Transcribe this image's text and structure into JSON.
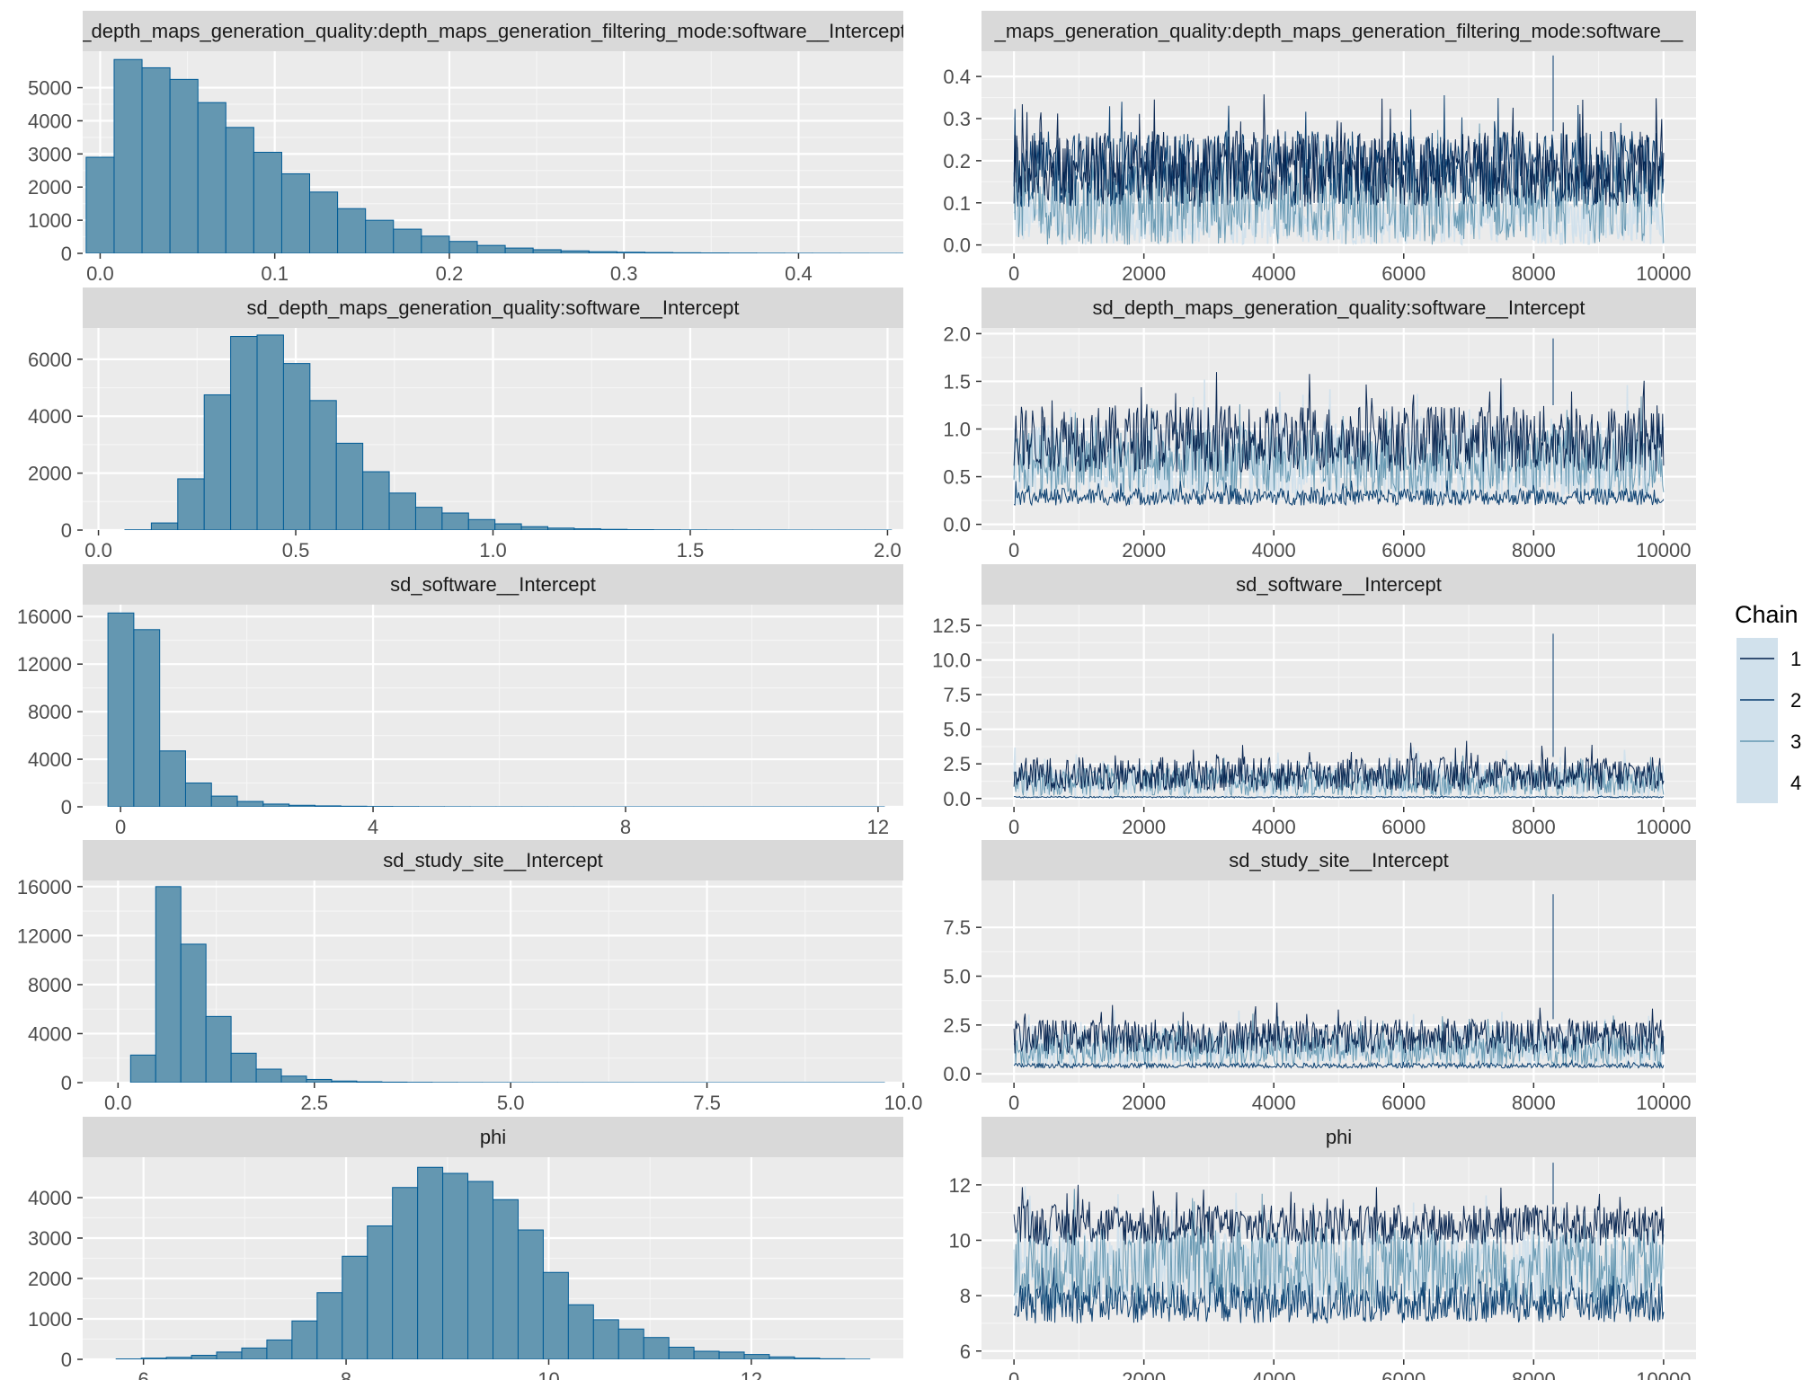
{
  "colors": {
    "panel_bg": "#ebebeb",
    "grid_major": "#ffffff",
    "strip_bg": "#d9d9d9",
    "bar_fill": "#6497b1",
    "bar_outline": "#005b96",
    "chain_1": "#011f4b",
    "chain_2": "#03396c",
    "chain_3": "#6497b1",
    "chain_4": "#d1e1ec"
  },
  "legend": {
    "title": "Chain",
    "items": [
      "1",
      "2",
      "3",
      "4"
    ]
  },
  "chart_data": [
    {
      "type": "bar",
      "kind": "histogram",
      "title": "_depth_maps_generation_quality:depth_maps_generation_filtering_mode:software__Intercept",
      "xlim": [
        -0.01,
        0.46
      ],
      "ylim": [
        0,
        6100
      ],
      "xticks": [
        0.0,
        0.1,
        0.2,
        0.3,
        0.4
      ],
      "xtick_labels": [
        "0.0",
        "0.1",
        "0.2",
        "0.3",
        "0.4"
      ],
      "yticks": [
        0,
        1000,
        2000,
        3000,
        4000,
        5000
      ],
      "ytick_labels": [
        "0",
        "1000",
        "2000",
        "3000",
        "4000",
        "5000"
      ],
      "bin_start": -0.008,
      "bin_width": 0.016,
      "counts": [
        2900,
        5850,
        5600,
        5250,
        4550,
        3800,
        3050,
        2400,
        1850,
        1350,
        1000,
        730,
        520,
        360,
        240,
        160,
        110,
        75,
        50,
        35,
        25,
        18,
        13,
        9,
        6,
        4,
        3,
        2,
        1,
        1
      ]
    },
    {
      "type": "line",
      "kind": "trace",
      "title": "_maps_generation_quality:depth_maps_generation_filtering_mode:software__",
      "xlim": [
        -500,
        10500
      ],
      "ylim": [
        -0.02,
        0.46
      ],
      "xticks": [
        0,
        2000,
        4000,
        6000,
        8000,
        10000
      ],
      "xtick_labels": [
        "0",
        "2000",
        "4000",
        "6000",
        "8000",
        "10000"
      ],
      "yticks": [
        0.0,
        0.1,
        0.2,
        0.3,
        0.4
      ],
      "ytick_labels": [
        "0.0",
        "0.1",
        "0.2",
        "0.3",
        "0.4"
      ],
      "iterations": [
        0,
        10000
      ],
      "series": [
        {
          "name": "1",
          "band": [
            0.09,
            0.27
          ]
        },
        {
          "name": "2",
          "band": [
            0.09,
            0.27
          ]
        },
        {
          "name": "3",
          "band": [
            0.0,
            0.2
          ]
        },
        {
          "name": "4",
          "band": [
            0.0,
            0.12
          ]
        }
      ],
      "max_value": 0.45
    },
    {
      "type": "bar",
      "kind": "histogram",
      "title": "sd_depth_maps_generation_quality:software__Intercept",
      "xlim": [
        -0.04,
        2.04
      ],
      "ylim": [
        0,
        7100
      ],
      "xticks": [
        0.0,
        0.5,
        1.0,
        1.5,
        2.0
      ],
      "xtick_labels": [
        "0.0",
        "0.5",
        "1.0",
        "1.5",
        "2.0"
      ],
      "yticks": [
        0,
        2000,
        4000,
        6000
      ],
      "ytick_labels": [
        "0",
        "2000",
        "4000",
        "6000"
      ],
      "bin_start": 0.0,
      "bin_width": 0.067,
      "counts": [
        0,
        10,
        250,
        1800,
        4750,
        6800,
        6850,
        5850,
        4550,
        3050,
        2050,
        1300,
        800,
        600,
        370,
        220,
        120,
        70,
        45,
        25,
        15,
        10,
        6,
        4,
        3,
        2,
        1,
        1,
        1,
        1
      ]
    },
    {
      "type": "line",
      "kind": "trace",
      "title": "sd_depth_maps_generation_quality:software__Intercept",
      "xlim": [
        -500,
        10500
      ],
      "ylim": [
        -0.06,
        2.06
      ],
      "xticks": [
        0,
        2000,
        4000,
        6000,
        8000,
        10000
      ],
      "xtick_labels": [
        "0",
        "2000",
        "4000",
        "6000",
        "8000",
        "10000"
      ],
      "yticks": [
        0.0,
        0.5,
        1.0,
        1.5,
        2.0
      ],
      "ytick_labels": [
        "0.0",
        "0.5",
        "1.0",
        "1.5",
        "2.0"
      ],
      "iterations": [
        0,
        10000
      ],
      "series": [
        {
          "name": "1",
          "band": [
            0.55,
            1.25
          ]
        },
        {
          "name": "2",
          "band": [
            0.2,
            0.38
          ]
        },
        {
          "name": "3",
          "band": [
            0.3,
            1.0
          ]
        },
        {
          "name": "4",
          "band": [
            0.2,
            1.1
          ]
        }
      ],
      "max_value": 1.95
    },
    {
      "type": "bar",
      "kind": "histogram",
      "title": "sd_software__Intercept",
      "xlim": [
        -0.6,
        12.4
      ],
      "ylim": [
        0,
        17000
      ],
      "xticks": [
        0,
        4,
        8,
        12
      ],
      "xtick_labels": [
        "0",
        "4",
        "8",
        "12"
      ],
      "yticks": [
        0,
        4000,
        8000,
        12000,
        16000
      ],
      "ytick_labels": [
        "0",
        "4000",
        "8000",
        "12000",
        "16000"
      ],
      "bin_start": -0.2,
      "bin_width": 0.41,
      "counts": [
        16300,
        14900,
        4700,
        2000,
        900,
        450,
        230,
        130,
        80,
        50,
        30,
        20,
        12,
        8,
        5,
        4,
        3,
        2,
        2,
        1,
        1,
        1,
        1,
        1,
        1,
        1,
        1,
        1,
        1,
        1
      ]
    },
    {
      "type": "line",
      "kind": "trace",
      "title": "sd_software__Intercept",
      "xlim": [
        -500,
        10500
      ],
      "ylim": [
        -0.6,
        14.0
      ],
      "xticks": [
        0,
        2000,
        4000,
        6000,
        8000,
        10000
      ],
      "xtick_labels": [
        "0",
        "2000",
        "4000",
        "6000",
        "8000",
        "10000"
      ],
      "yticks": [
        0.0,
        2.5,
        5.0,
        7.5,
        10.0,
        12.5
      ],
      "ytick_labels": [
        "0.0",
        "2.5",
        "5.0",
        "7.5",
        "10.0",
        "12.5"
      ],
      "iterations": [
        0,
        10000
      ],
      "series": [
        {
          "name": "1",
          "band": [
            0.5,
            3.0
          ]
        },
        {
          "name": "2",
          "band": [
            0.05,
            0.15
          ]
        },
        {
          "name": "3",
          "band": [
            0.2,
            2.2
          ]
        },
        {
          "name": "4",
          "band": [
            0.0,
            2.5
          ]
        }
      ],
      "max_value": 11.9
    },
    {
      "type": "bar",
      "kind": "histogram",
      "title": "sd_study_site__Intercept",
      "xlim": [
        -0.45,
        10.0
      ],
      "ylim": [
        0,
        16500
      ],
      "xticks": [
        0.0,
        2.5,
        5.0,
        7.5,
        10.0
      ],
      "xtick_labels": [
        "0.0",
        "2.5",
        "5.0",
        "7.5",
        "10.0"
      ],
      "yticks": [
        0,
        4000,
        8000,
        12000,
        16000
      ],
      "ytick_labels": [
        "0",
        "4000",
        "8000",
        "12000",
        "16000"
      ],
      "bin_start": 0.16,
      "bin_width": 0.32,
      "counts": [
        2250,
        16000,
        11300,
        5400,
        2400,
        1100,
        530,
        260,
        130,
        70,
        40,
        25,
        15,
        10,
        7,
        5,
        4,
        3,
        2,
        2,
        1,
        1,
        1,
        1,
        1,
        1,
        1,
        1,
        1,
        1
      ]
    },
    {
      "type": "line",
      "kind": "trace",
      "title": "sd_study_site__Intercept",
      "xlim": [
        -500,
        10500
      ],
      "ylim": [
        -0.45,
        9.9
      ],
      "xticks": [
        0,
        2000,
        4000,
        6000,
        8000,
        10000
      ],
      "xtick_labels": [
        "0",
        "2000",
        "4000",
        "6000",
        "8000",
        "10000"
      ],
      "yticks": [
        0.0,
        2.5,
        5.0,
        7.5
      ],
      "ytick_labels": [
        "0.0",
        "2.5",
        "5.0",
        "7.5"
      ],
      "iterations": [
        0,
        10000
      ],
      "series": [
        {
          "name": "1",
          "band": [
            1.0,
            2.8
          ]
        },
        {
          "name": "2",
          "band": [
            0.3,
            0.55
          ]
        },
        {
          "name": "3",
          "band": [
            0.4,
            2.2
          ]
        },
        {
          "name": "4",
          "band": [
            0.3,
            2.4
          ]
        }
      ],
      "max_value": 9.2
    },
    {
      "type": "bar",
      "kind": "histogram",
      "title": "phi",
      "xlim": [
        5.4,
        13.5
      ],
      "ylim": [
        0,
        5000
      ],
      "xticks": [
        6,
        8,
        10,
        12
      ],
      "xtick_labels": [
        "6",
        "8",
        "10",
        "12"
      ],
      "yticks": [
        0,
        1000,
        2000,
        3000,
        4000
      ],
      "ytick_labels": [
        "0",
        "1000",
        "2000",
        "3000",
        "4000"
      ],
      "bin_start": 5.73,
      "bin_width": 0.248,
      "counts": [
        10,
        30,
        50,
        100,
        180,
        280,
        480,
        950,
        1650,
        2550,
        3300,
        4250,
        4750,
        4600,
        4400,
        3950,
        3200,
        2150,
        1350,
        980,
        750,
        540,
        300,
        200,
        180,
        120,
        60,
        30,
        15,
        5
      ]
    },
    {
      "type": "line",
      "kind": "trace",
      "title": "phi",
      "xlim": [
        -500,
        10500
      ],
      "ylim": [
        5.7,
        13.0
      ],
      "xticks": [
        0,
        2000,
        4000,
        6000,
        8000,
        10000
      ],
      "xtick_labels": [
        "0",
        "2000",
        "4000",
        "6000",
        "8000",
        "10000"
      ],
      "yticks": [
        6,
        8,
        10,
        12
      ],
      "ytick_labels": [
        "6",
        "8",
        "10",
        "12"
      ],
      "iterations": [
        0,
        10000
      ],
      "series": [
        {
          "name": "1",
          "band": [
            9.8,
            11.3
          ]
        },
        {
          "name": "2",
          "band": [
            7.0,
            8.5
          ]
        },
        {
          "name": "3",
          "band": [
            7.5,
            10.5
          ]
        },
        {
          "name": "4",
          "band": [
            7.5,
            10.5
          ]
        }
      ],
      "max_value": 12.8
    }
  ]
}
